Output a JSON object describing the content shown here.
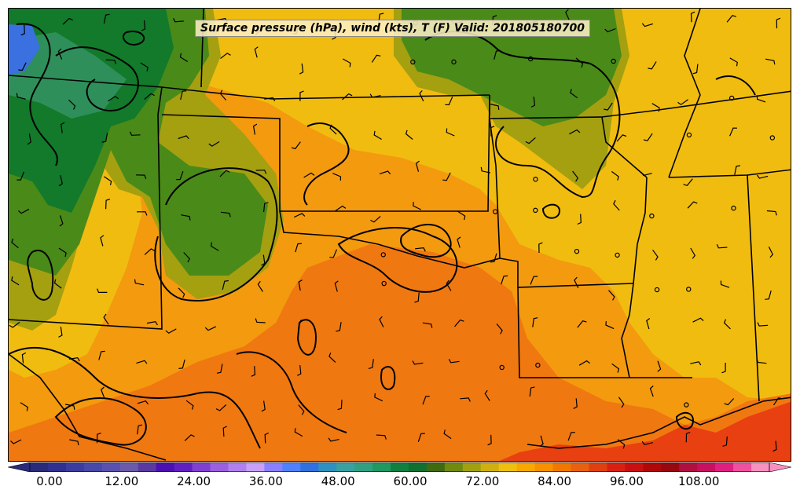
{
  "title": "Surface pressure (hPa), wind (kts), T (F) Valid: 201805180700",
  "colorbar": {
    "ticks": [
      "0.00",
      "12.00",
      "24.00",
      "36.00",
      "48.00",
      "60.00",
      "72.00",
      "84.00",
      "96.00",
      "108.00"
    ],
    "colors": [
      "#2a2a7a",
      "#303090",
      "#3c3ca0",
      "#4848a8",
      "#5a50b0",
      "#6a5aa8",
      "#5a3aa0",
      "#4a10b0",
      "#6020c0",
      "#8040d0",
      "#9a60e0",
      "#b080f0",
      "#c8a0f8",
      "#8a80ff",
      "#5080ff",
      "#3070e0",
      "#3090c0",
      "#3aa0a0",
      "#30a080",
      "#209860",
      "#108040",
      "#107030",
      "#406a10",
      "#708a10",
      "#a0a010",
      "#d0b010",
      "#f0c010",
      "#f8a800",
      "#f89000",
      "#f07800",
      "#e86010",
      "#e04010",
      "#d82010",
      "#c81010",
      "#b00808",
      "#980810",
      "#b01040",
      "#c81060",
      "#e02080",
      "#f050a0",
      "#f890c0"
    ],
    "extend": "both"
  },
  "regions": {
    "gulf_color": "#e84010",
    "green_dark": "#127a2a",
    "green_mid": "#4a8a18",
    "olive": "#a4a010",
    "yellow": "#f0bc10",
    "orange": "#f8a400",
    "deep_orange": "#f07810"
  }
}
